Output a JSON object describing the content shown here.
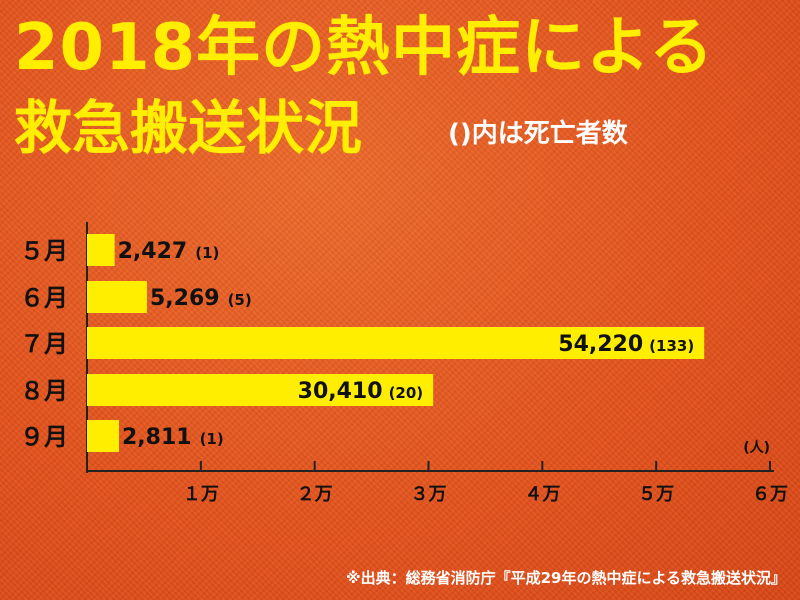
{
  "title_line1": "2018年の熱中症による",
  "title_line2": "救急搬送状況",
  "subtitle": "()内は死亡者数",
  "source": "※出典：総務省消防庁『平成29年の熱中症による救急搬送状況』",
  "colors": {
    "bar": "#ffee00",
    "background": "#e8541f",
    "axis": "#222222",
    "title": "#ffee00"
  },
  "chart_data": {
    "type": "bar",
    "orientation": "horizontal",
    "categories": [
      "５月",
      "６月",
      "７月",
      "８月",
      "９月"
    ],
    "values": [
      2427,
      5269,
      54220,
      30410,
      2811
    ],
    "value_labels": [
      "2,427",
      "5,269",
      "54,220",
      "30,410",
      "2,811"
    ],
    "death_labels": [
      "(1)",
      "(5)",
      "(133)",
      "(20)",
      "(1)"
    ],
    "xlim": [
      0,
      60000
    ],
    "x_ticks": [
      10000,
      20000,
      30000,
      40000,
      50000,
      60000
    ],
    "x_tick_labels": [
      "１万",
      "２万",
      "３万",
      "４万",
      "５万",
      "６万"
    ],
    "unit_label": "(人)",
    "grid": false
  }
}
